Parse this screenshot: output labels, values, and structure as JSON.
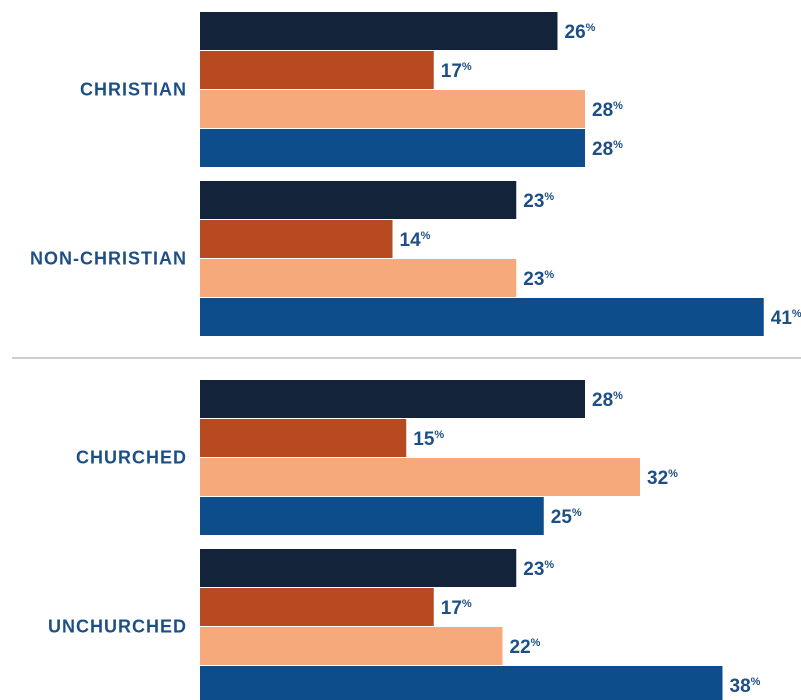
{
  "chart_data": {
    "type": "bar",
    "orientation": "horizontal",
    "categories": [
      "CHRISTIAN",
      "NON-CHRISTIAN",
      "CHURCHED",
      "UNCHURCHED"
    ],
    "series": [
      {
        "values": [
          26,
          23,
          28,
          23
        ],
        "color": "#12233a"
      },
      {
        "values": [
          17,
          14,
          15,
          17
        ],
        "color": "#b84a22"
      },
      {
        "values": [
          28,
          23,
          32,
          22
        ],
        "color": "#f6a97b"
      },
      {
        "values": [
          28,
          41,
          25,
          38
        ],
        "color": "#0d4d8c"
      }
    ],
    "value_suffix": "%",
    "groups_divided_after": [
      1
    ],
    "xlim": [
      0,
      43
    ]
  }
}
